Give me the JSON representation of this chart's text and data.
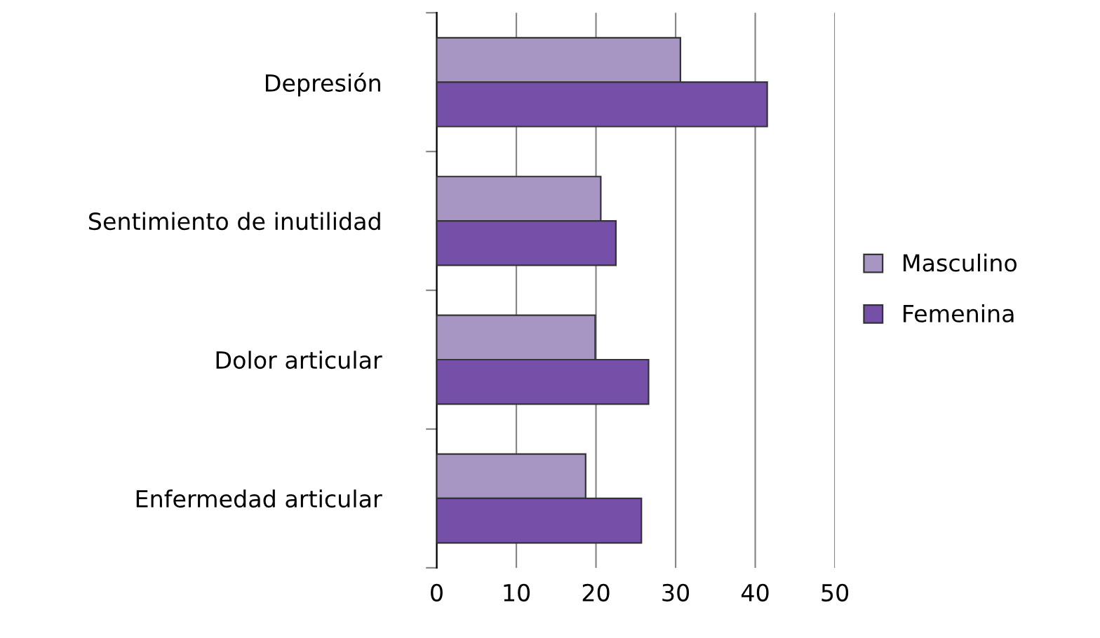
{
  "chart_data": {
    "type": "bar",
    "orientation": "horizontal",
    "categories": [
      "Depresión",
      "Sentimiento de inutilidad",
      "Dolor articular",
      "Enfermedad articular"
    ],
    "series": [
      {
        "name": "Masculino",
        "color": "#a796c4",
        "values": [
          30.6,
          20.6,
          19.9,
          18.7
        ]
      },
      {
        "name": "Femenina",
        "color": "#7650a8",
        "values": [
          41.5,
          22.5,
          26.6,
          25.7
        ]
      }
    ],
    "xlim": [
      0,
      50
    ],
    "xticks": [
      0,
      10,
      20,
      30,
      40,
      50
    ],
    "grid": "x",
    "legend": "right"
  }
}
